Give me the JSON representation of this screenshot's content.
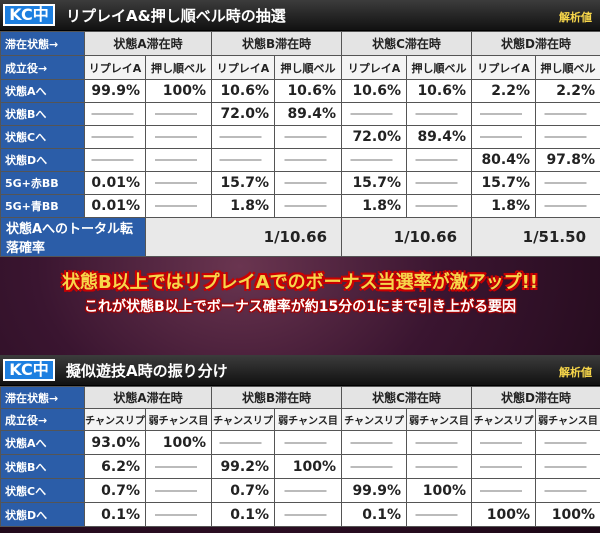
{
  "section1": {
    "badge": "KC中",
    "title": "リプレイA&押し順ベル時の抽選",
    "note": "解析値",
    "row_label_state": "滞在状態→",
    "row_label_role": "成立役→",
    "states": [
      "状態A滞在時",
      "状態B滞在時",
      "状態C滞在時",
      "状態D滞在時"
    ],
    "subs": [
      "リプレイA",
      "押し順ベル"
    ],
    "dash": "―――",
    "rows": [
      {
        "label": "状態Aへ",
        "values": [
          "99.9%",
          "100%",
          "10.6%",
          "10.6%",
          "10.6%",
          "10.6%",
          "2.2%",
          "2.2%"
        ]
      },
      {
        "label": "状態Bへ",
        "values": [
          "―――",
          "―――",
          "72.0%",
          "89.4%",
          "―――",
          "―――",
          "―――",
          "―――"
        ]
      },
      {
        "label": "状態Cへ",
        "values": [
          "―――",
          "―――",
          "―――",
          "―――",
          "72.0%",
          "89.4%",
          "―――",
          "―――"
        ]
      },
      {
        "label": "状態Dへ",
        "values": [
          "―――",
          "―――",
          "―――",
          "―――",
          "―――",
          "―――",
          "80.4%",
          "97.8%"
        ]
      },
      {
        "label": "5G+赤BB",
        "values": [
          "0.01%",
          "―――",
          "15.7%",
          "―――",
          "15.7%",
          "―――",
          "15.7%",
          "―――"
        ]
      },
      {
        "label": "5G+青BB",
        "values": [
          "0.01%",
          "―――",
          "1.8%",
          "―――",
          "1.8%",
          "―――",
          "1.8%",
          "―――"
        ]
      }
    ],
    "total_label": "状態Aへのトータル転落確率",
    "totals": [
      "1/10.66",
      "1/10.66",
      "1/51.50"
    ]
  },
  "banner": {
    "line1": "状態B以上ではリプレイAでのボーナス当選率が激アップ!!",
    "line2": "これが状態B以上でボーナス確率が約15分の1にまで引き上がる要因"
  },
  "section2": {
    "badge": "KC中",
    "title": "擬似遊技A時の振り分け",
    "note": "解析値",
    "row_label_state": "滞在状態→",
    "row_label_role": "成立役→",
    "states": [
      "状態A滞在時",
      "状態B滞在時",
      "状態C滞在時",
      "状態D滞在時"
    ],
    "subs": [
      "チャンスリプ",
      "弱チャンス目"
    ],
    "rows": [
      {
        "label": "状態Aへ",
        "values": [
          "93.0%",
          "100%",
          "―――",
          "―――",
          "―――",
          "―――",
          "―――",
          "―――"
        ]
      },
      {
        "label": "状態Bへ",
        "values": [
          "6.2%",
          "―――",
          "99.2%",
          "100%",
          "―――",
          "―――",
          "―――",
          "―――"
        ]
      },
      {
        "label": "状態Cへ",
        "values": [
          "0.7%",
          "―――",
          "0.7%",
          "―――",
          "99.9%",
          "100%",
          "―――",
          "―――"
        ]
      },
      {
        "label": "状態Dへ",
        "values": [
          "0.1%",
          "―――",
          "0.1%",
          "―――",
          "0.1%",
          "―――",
          "100%",
          "100%"
        ]
      }
    ]
  }
}
